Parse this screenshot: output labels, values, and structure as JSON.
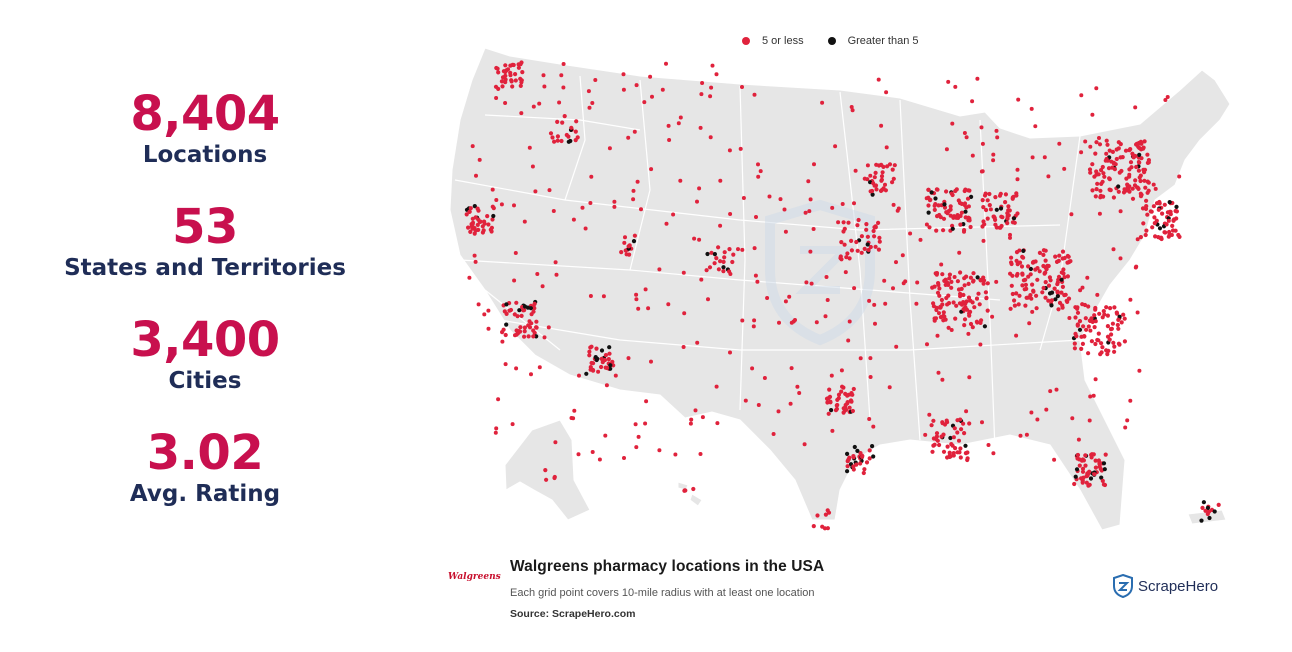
{
  "stats": [
    {
      "value": "8,404",
      "label": "Locations"
    },
    {
      "value": "53",
      "label": "States and Territories"
    },
    {
      "value": "3,400",
      "label": "Cities"
    },
    {
      "value": "3.02",
      "label": "Avg. Rating"
    }
  ],
  "legend": {
    "low": {
      "label": "5 or less",
      "color": "#e0223c"
    },
    "high": {
      "label": "Greater than 5",
      "color": "#111111"
    }
  },
  "caption": {
    "title": "Walgreens pharmacy locations in the USA",
    "subtitle": "Each grid point covers 10-mile radius with at least one location",
    "source": "Source: ScrapeHero.com"
  },
  "brand": {
    "walgreens_logo": "Walgreens",
    "scrapehero_logo": "ScrapeHero"
  },
  "colors": {
    "land": "#e6e6e6",
    "state_border": "#ffffff",
    "value_accent": "#c8104e",
    "label_text": "#1f2d57",
    "watermark": "#d7e3ee"
  }
}
